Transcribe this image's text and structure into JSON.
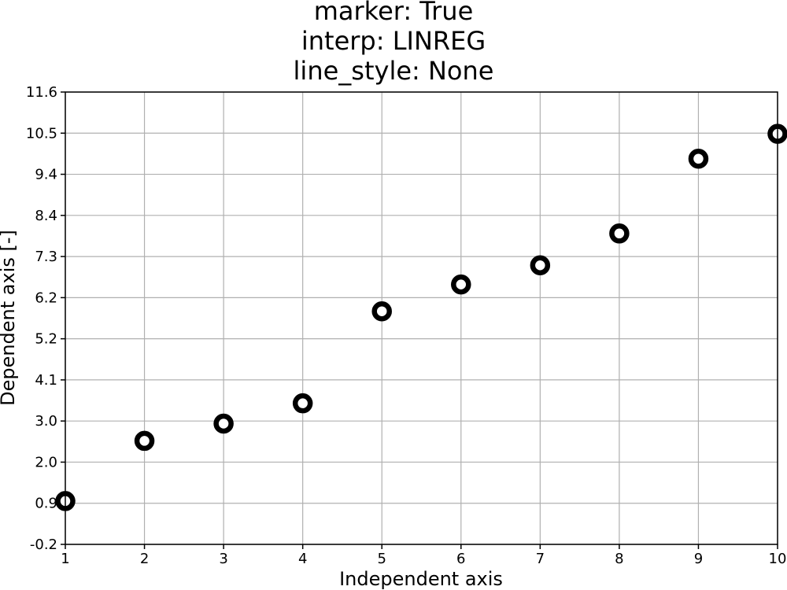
{
  "chart_data": {
    "type": "scatter",
    "title_lines": [
      "marker: True",
      "interp: LINREG",
      "line_style: None"
    ],
    "xlabel": "Independent axis",
    "ylabel": "Dependent axis [-]",
    "xlim": [
      1,
      10
    ],
    "ylim": [
      -0.2,
      11.6
    ],
    "x_ticks": [
      "1",
      "2",
      "3",
      "4",
      "5",
      "6",
      "7",
      "8",
      "9",
      "10"
    ],
    "y_ticks": [
      "-0.2",
      "0.9",
      "2.0",
      "3.0",
      "4.1",
      "5.2",
      "6.2",
      "7.3",
      "8.4",
      "9.4",
      "10.5",
      "11.6"
    ],
    "grid": true,
    "marker": "open-circle",
    "colors": {
      "marker_edge": "#000000",
      "marker_face": "#ffffff",
      "grid": "#b0b0b0"
    },
    "x": [
      1,
      2,
      3,
      4,
      5,
      6,
      7,
      8,
      9,
      10
    ],
    "y": [
      0.93,
      2.5,
      2.95,
      3.48,
      5.88,
      6.58,
      7.08,
      7.91,
      9.86,
      10.51
    ]
  }
}
